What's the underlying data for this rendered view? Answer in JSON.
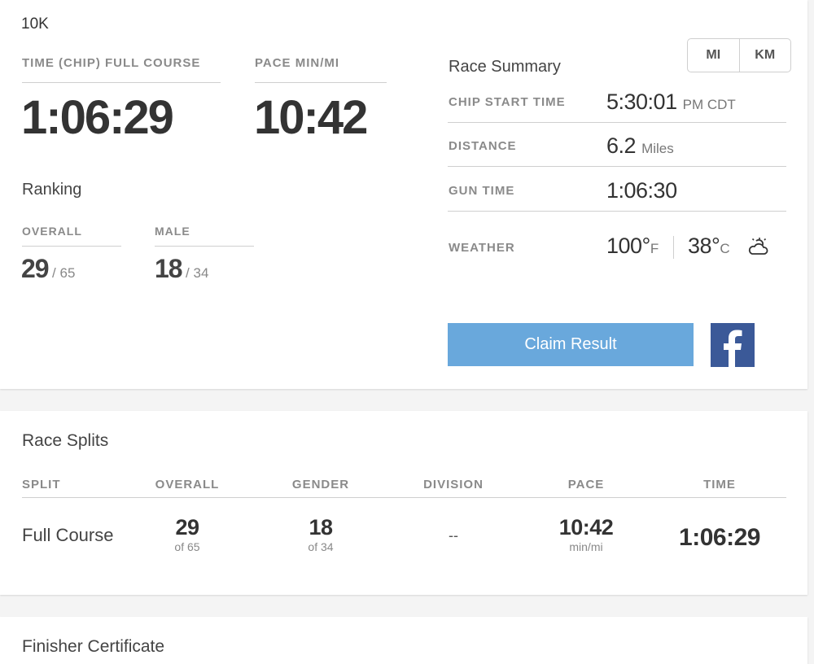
{
  "result": {
    "race_name": "10K",
    "time_label": "TIME (CHIP) FULL COURSE",
    "time_value": "1:06:29",
    "pace_label": "PACE MIN/MI",
    "pace_value": "10:42",
    "ranking_title": "Ranking",
    "overall_label": "OVERALL",
    "overall_rank": "29",
    "overall_total": "/ 65",
    "male_label": "MALE",
    "male_rank": "18",
    "male_total": "/ 34"
  },
  "units": {
    "mi": "MI",
    "km": "KM"
  },
  "summary": {
    "title": "Race Summary",
    "chip_start_label": "CHIP START TIME",
    "chip_start_value": "5:30:01",
    "chip_start_suffix": "PM CDT",
    "distance_label": "DISTANCE",
    "distance_value": "6.2",
    "distance_unit": "Miles",
    "gun_time_label": "GUN TIME",
    "gun_time_value": "1:06:30",
    "weather_label": "WEATHER",
    "temp_f": "100°",
    "temp_f_unit": "F",
    "temp_c": "38°",
    "temp_c_unit": "C",
    "weather_icon": "partly-cloudy-icon"
  },
  "actions": {
    "claim_label": "Claim Result",
    "facebook_icon": "facebook-icon",
    "facebook_color": "#3b5998",
    "claim_color": "#69a8dc"
  },
  "splits": {
    "title": "Race Splits",
    "headers": {
      "split": "SPLIT",
      "overall": "OVERALL",
      "gender": "GENDER",
      "division": "DIVISION",
      "pace": "PACE",
      "time": "TIME"
    },
    "rows": [
      {
        "split": "Full Course",
        "overall": "29",
        "overall_of": "of 65",
        "gender": "18",
        "gender_of": "of 34",
        "division": "--",
        "pace": "10:42",
        "pace_unit": "min/mi",
        "time": "1:06:29"
      }
    ]
  },
  "certificate": {
    "title": "Finisher Certificate"
  }
}
